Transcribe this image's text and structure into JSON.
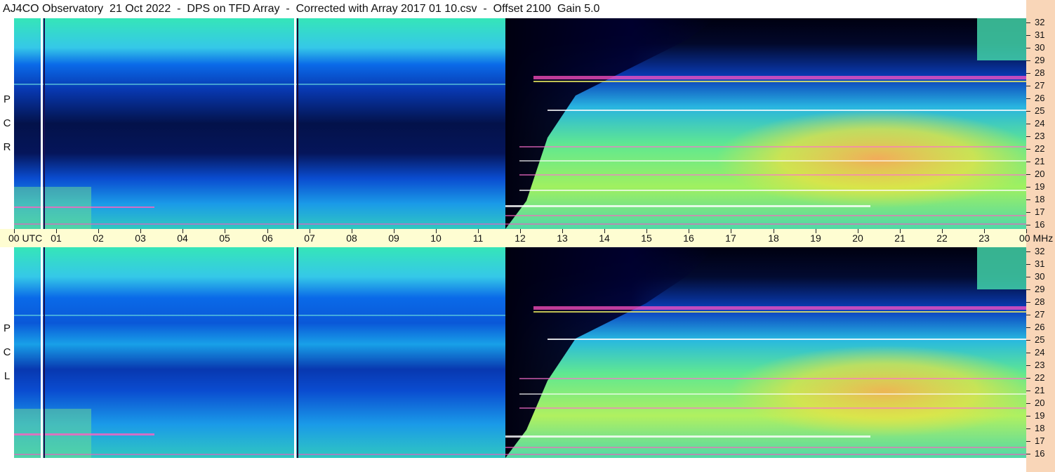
{
  "title": "AJ4CO Observatory  21 Oct 2022  -  DPS on TFD Array  -  Corrected with Array 2017 01 10.csv  -  Offset 2100  Gain 5.0",
  "panels": [
    {
      "id": "top",
      "polarization_letters": [
        "P",
        "C",
        "R"
      ]
    },
    {
      "id": "bottom",
      "polarization_letters": [
        "P",
        "C",
        "L"
      ]
    }
  ],
  "time_axis": {
    "labels": [
      "00  UTC",
      "01",
      "02",
      "03",
      "04",
      "05",
      "06",
      "07",
      "08",
      "09",
      "10",
      "11",
      "12",
      "13",
      "14",
      "15",
      "16",
      "17",
      "18",
      "19",
      "20",
      "21",
      "22",
      "23",
      "00 MHz"
    ]
  },
  "freq_axis": {
    "labels": [
      "32",
      "31",
      "30",
      "29",
      "28",
      "27",
      "26",
      "25",
      "24",
      "23",
      "22",
      "21",
      "20",
      "19",
      "18",
      "17",
      "16"
    ]
  },
  "colors": {
    "axis_band": "#fefdd2",
    "right_strip": "#f9d6b8",
    "colormap": [
      "#000018",
      "#001a8a",
      "#0a5ee0",
      "#1aa8f0",
      "#39e6b0",
      "#9ef060",
      "#f0f040",
      "#f8b848",
      "#ff60c0",
      "#ffffff"
    ]
  },
  "chart_data": {
    "type": "heatmap",
    "title": "AJ4CO Observatory  21 Oct 2022  -  DPS on TFD Array  -  Corrected with Array 2017 01 10.csv  -  Offset 2100  Gain 5.0",
    "x_label": "UTC",
    "y_label": "MHz",
    "x_range_hours": [
      0,
      24
    ],
    "y_range_mhz": [
      16,
      32
    ],
    "panels": [
      "RCP",
      "LCP"
    ],
    "notes": "Dynamic spectrogram; frequency 16–32 MHz vs UTC hours 00–24. Quiet (blue) night side before ~11.6 UTC, bright (green/yellow) day side after; strong interference lines near 27 and 25 MHz."
  }
}
